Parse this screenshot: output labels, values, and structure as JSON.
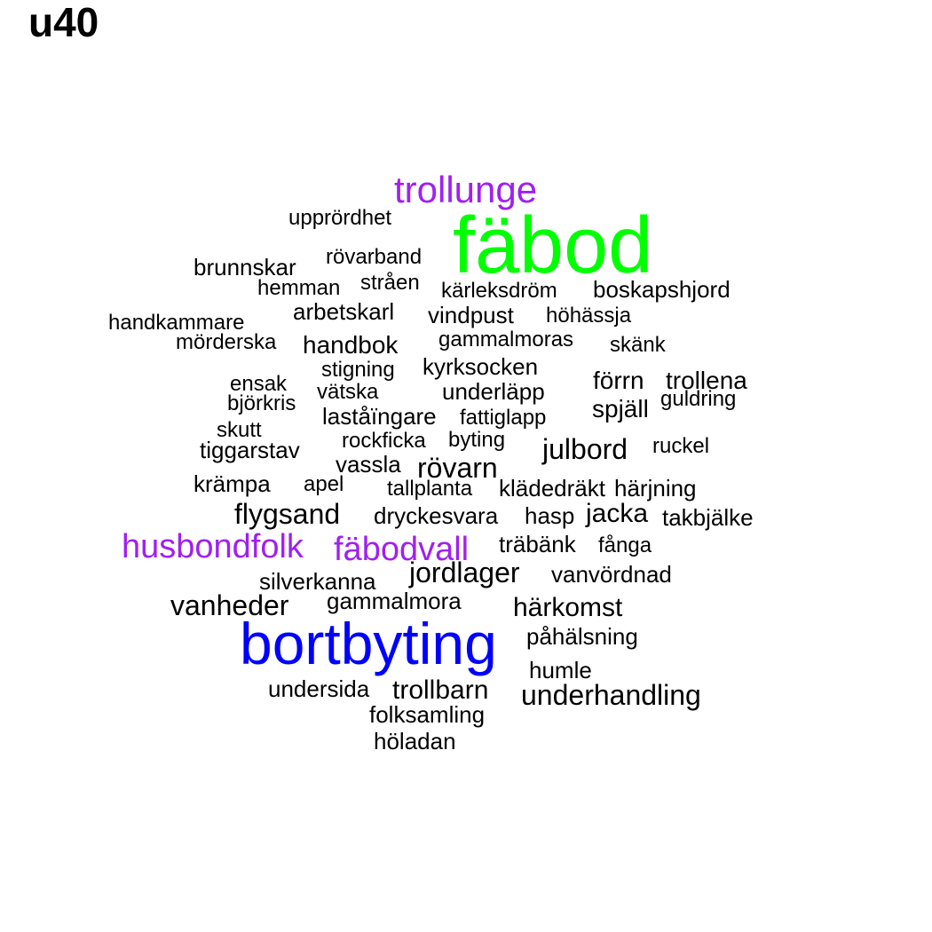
{
  "title": "u40",
  "colors": {
    "default": "#000000",
    "green": "#00ff00",
    "blue": "#0000ff",
    "purple": "#a020f0"
  },
  "words": [
    {
      "text": "fäbod",
      "color": "#00ff00"
    },
    {
      "text": "bortbyting",
      "color": "#0000ff"
    },
    {
      "text": "trollunge",
      "color": "#a020f0"
    },
    {
      "text": "husbondfolk",
      "color": "#a020f0"
    },
    {
      "text": "fäbodvall",
      "color": "#a020f0"
    },
    {
      "text": "upprördhet"
    },
    {
      "text": "rövarband"
    },
    {
      "text": "brunnskar"
    },
    {
      "text": "hemman"
    },
    {
      "text": "stråen"
    },
    {
      "text": "kärleksdröm"
    },
    {
      "text": "boskapshjord"
    },
    {
      "text": "arbetskarl"
    },
    {
      "text": "vindpust"
    },
    {
      "text": "höhässja"
    },
    {
      "text": "handkammare"
    },
    {
      "text": "mörderska"
    },
    {
      "text": "handbok"
    },
    {
      "text": "gammalmoras"
    },
    {
      "text": "skänk"
    },
    {
      "text": "stigning"
    },
    {
      "text": "kyrksocken"
    },
    {
      "text": "förrn"
    },
    {
      "text": "trollena"
    },
    {
      "text": "ensak"
    },
    {
      "text": "vätska"
    },
    {
      "text": "underläpp"
    },
    {
      "text": "guldring"
    },
    {
      "text": "björkris"
    },
    {
      "text": "spjäll"
    },
    {
      "text": "laståïngare"
    },
    {
      "text": "fattiglapp"
    },
    {
      "text": "skutt"
    },
    {
      "text": "rockficka"
    },
    {
      "text": "byting"
    },
    {
      "text": "julbord"
    },
    {
      "text": "ruckel"
    },
    {
      "text": "tiggarstav"
    },
    {
      "text": "vassla"
    },
    {
      "text": "rövarn"
    },
    {
      "text": "krämpa"
    },
    {
      "text": "apel"
    },
    {
      "text": "tallplanta"
    },
    {
      "text": "klädedräkt"
    },
    {
      "text": "härjning"
    },
    {
      "text": "flygsand"
    },
    {
      "text": "dryckesvara"
    },
    {
      "text": "hasp"
    },
    {
      "text": "jacka"
    },
    {
      "text": "takbjälke"
    },
    {
      "text": "träbänk"
    },
    {
      "text": "fånga"
    },
    {
      "text": "jordlager"
    },
    {
      "text": "silverkanna"
    },
    {
      "text": "vanvördnad"
    },
    {
      "text": "vanheder"
    },
    {
      "text": "gammalmora"
    },
    {
      "text": "härkomst"
    },
    {
      "text": "påhälsning"
    },
    {
      "text": "humle"
    },
    {
      "text": "undersida"
    },
    {
      "text": "trollbarn"
    },
    {
      "text": "underhandling"
    },
    {
      "text": "folksamling"
    },
    {
      "text": "höladan"
    }
  ]
}
